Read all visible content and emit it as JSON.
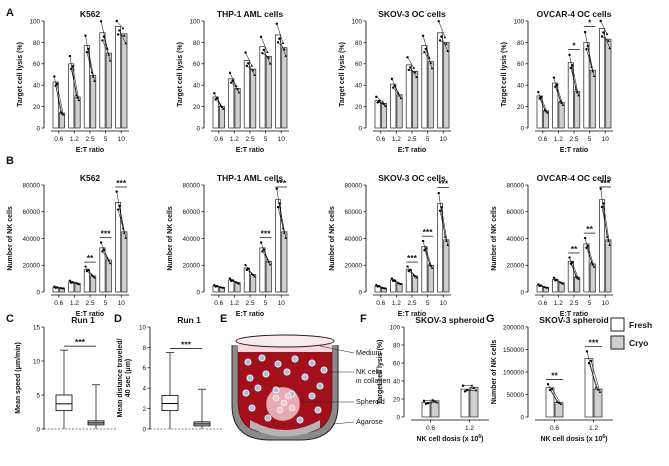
{
  "figure": {
    "panel_letters": [
      "A",
      "B",
      "C",
      "D",
      "E",
      "F",
      "G"
    ],
    "legend": {
      "fresh_label": "Fresh",
      "cryo_label": "Cryo",
      "fresh_color": "#ffffff",
      "cryo_color": "#cfcfcf"
    }
  },
  "chart_data": [
    {
      "id": "A1",
      "type": "bar",
      "title": "K562",
      "xlabel": "E:T ratio",
      "ylabel": "Target cell lysis (%)",
      "categories": [
        "0.6",
        "1.2",
        "2.5",
        "5",
        "10"
      ],
      "ylim": [
        0,
        100
      ],
      "yticks": [
        0,
        20,
        40,
        60,
        80,
        100
      ],
      "series": [
        {
          "name": "Fresh",
          "values": [
            43,
            60,
            77,
            89,
            95
          ]
        },
        {
          "name": "Cryo",
          "values": [
            14,
            29,
            49,
            70,
            88
          ]
        }
      ],
      "annotations": []
    },
    {
      "id": "A2",
      "type": "bar",
      "title": "THP-1  AML cells",
      "xlabel": "E:T ratio",
      "ylabel": "Target cell lysis (%)",
      "categories": [
        "0.6",
        "1.2",
        "2.5",
        "5",
        "10"
      ],
      "ylim": [
        0,
        100
      ],
      "yticks": [
        0,
        20,
        40,
        60,
        80,
        100
      ],
      "series": [
        {
          "name": "Fresh",
          "values": [
            29,
            46,
            63,
            76,
            87
          ]
        },
        {
          "name": "Cryo",
          "values": [
            20,
            37,
            55,
            67,
            75
          ]
        }
      ],
      "annotations": []
    },
    {
      "id": "A3",
      "type": "bar",
      "title": "SKOV-3 OC cells",
      "xlabel": "E:T ratio",
      "ylabel": "Target cell lysis (%)",
      "categories": [
        "0.6",
        "1.2",
        "2.5",
        "5",
        "10"
      ],
      "ylim": [
        0,
        100
      ],
      "yticks": [
        0,
        20,
        40,
        60,
        80,
        100
      ],
      "series": [
        {
          "name": "Fresh",
          "values": [
            26,
            41,
            59,
            77,
            89
          ]
        },
        {
          "name": "Cryo",
          "values": [
            23,
            31,
            53,
            62,
            80
          ]
        }
      ],
      "annotations": []
    },
    {
      "id": "A4",
      "type": "bar",
      "title": "OVCAR-4 OC cells",
      "xlabel": "E:T ratio",
      "ylabel": "Target cell lysis (%)",
      "categories": [
        "0.6",
        "1.2",
        "2.5",
        "5",
        "10"
      ],
      "ylim": [
        0,
        100
      ],
      "yticks": [
        0,
        20,
        40,
        60,
        80,
        100
      ],
      "series": [
        {
          "name": "Fresh",
          "values": [
            30,
            42,
            61,
            80,
            93
          ]
        },
        {
          "name": "Cryo",
          "values": [
            16,
            24,
            34,
            54,
            83
          ]
        }
      ],
      "annotations": [
        {
          "category": "2.5",
          "label": "*"
        },
        {
          "category": "5",
          "label": "*"
        }
      ]
    },
    {
      "id": "B1",
      "type": "bar",
      "title": "K562",
      "xlabel": "E:T ratio",
      "ylabel": "Number of NK cells",
      "categories": [
        "0.6",
        "1.2",
        "2.5",
        "5",
        "10"
      ],
      "ylim": [
        0,
        80000
      ],
      "yticks": [
        0,
        20000,
        40000,
        60000,
        80000
      ],
      "series": [
        {
          "name": "Fresh",
          "values": [
            3500,
            7500,
            17000,
            33000,
            67000
          ]
        },
        {
          "name": "Cryo",
          "values": [
            3000,
            6500,
            12000,
            24000,
            45000
          ]
        }
      ],
      "annotations": [
        {
          "category": "2.5",
          "label": "**"
        },
        {
          "category": "5",
          "label": "***"
        },
        {
          "category": "10",
          "label": "***"
        }
      ]
    },
    {
      "id": "B2",
      "type": "bar",
      "title": "THP-1  AML cells",
      "xlabel": "E:T ratio",
      "ylabel": "Number of NK cells",
      "categories": [
        "0.6",
        "1.2",
        "2.5",
        "5",
        "10"
      ],
      "ylim": [
        0,
        80000
      ],
      "yticks": [
        0,
        20000,
        40000,
        60000,
        80000
      ],
      "series": [
        {
          "name": "Fresh",
          "values": [
            4500,
            9000,
            18000,
            33000,
            69000
          ]
        },
        {
          "name": "Cryo",
          "values": [
            3500,
            7000,
            13000,
            23000,
            45000
          ]
        }
      ],
      "annotations": [
        {
          "category": "5",
          "label": "***"
        },
        {
          "category": "10",
          "label": "***"
        }
      ]
    },
    {
      "id": "B3",
      "type": "bar",
      "title": "SKOV-3 OC cells",
      "xlabel": "E:T ratio",
      "ylabel": "Number of NK cells",
      "categories": [
        "0.6",
        "1.2",
        "2.5",
        "5",
        "10"
      ],
      "ylim": [
        0,
        80000
      ],
      "yticks": [
        0,
        20000,
        40000,
        60000,
        80000
      ],
      "series": [
        {
          "name": "Fresh",
          "values": [
            4500,
            9000,
            17000,
            34000,
            66000
          ]
        },
        {
          "name": "Cryo",
          "values": [
            3000,
            6500,
            12000,
            20000,
            39000
          ]
        }
      ],
      "annotations": [
        {
          "category": "2.5",
          "label": "***"
        },
        {
          "category": "5",
          "label": "***"
        },
        {
          "category": "10",
          "label": "***"
        }
      ]
    },
    {
      "id": "B4",
      "type": "bar",
      "title": "OVCAR-4 OC cells",
      "xlabel": "E:T ratio",
      "ylabel": "Number of NK cells",
      "categories": [
        "0.6",
        "1.2",
        "2.5",
        "5",
        "10"
      ],
      "ylim": [
        0,
        80000
      ],
      "yticks": [
        0,
        20000,
        40000,
        60000,
        80000
      ],
      "series": [
        {
          "name": "Fresh",
          "values": [
            5000,
            9500,
            23000,
            36000,
            69000
          ]
        },
        {
          "name": "Cryo",
          "values": [
            3500,
            7000,
            11000,
            21000,
            39000
          ]
        }
      ],
      "annotations": [
        {
          "category": "2.5",
          "label": "**"
        },
        {
          "category": "5",
          "label": "**"
        },
        {
          "category": "10",
          "label": "***"
        }
      ]
    },
    {
      "id": "C",
      "type": "box",
      "title": "Run 1",
      "ylabel": "Mean speed  (μm/min)",
      "ylim": [
        0,
        15
      ],
      "yticks": [
        0,
        5,
        10,
        15
      ],
      "boxes": [
        {
          "name": "Fresh",
          "min": 0,
          "q1": 2.7,
          "median": 3.7,
          "q3": 5.0,
          "max": 11.6
        },
        {
          "name": "Cryo",
          "min": 0,
          "q1": 0.6,
          "median": 0.9,
          "q3": 1.2,
          "max": 6.5
        }
      ],
      "significance": "***"
    },
    {
      "id": "D",
      "type": "box",
      "title": "Run 1",
      "ylabel": "Mean distance traveled/\n40 sec (μm)",
      "ylim": [
        0,
        10
      ],
      "yticks": [
        0,
        2,
        4,
        6,
        8,
        10
      ],
      "boxes": [
        {
          "name": "Fresh",
          "min": 0,
          "q1": 1.8,
          "median": 2.5,
          "q3": 3.3,
          "max": 7.5
        },
        {
          "name": "Cryo",
          "min": 0,
          "q1": 0.3,
          "median": 0.5,
          "q3": 0.7,
          "max": 3.9
        }
      ],
      "significance": "***"
    },
    {
      "id": "F",
      "type": "bar",
      "title": "SKOV-3 spheroid",
      "xlabel": "NK cell dosis (x 10",
      "xlabel_sup": "6",
      "xlabel_end": ")",
      "ylabel": "Target cell lysis (%)",
      "categories": [
        "0.6",
        "1.2"
      ],
      "ylim": [
        0,
        100
      ],
      "yticks": [
        0,
        20,
        40,
        60,
        80,
        100
      ],
      "series": [
        {
          "name": "Fresh",
          "values": [
            16,
            31
          ]
        },
        {
          "name": "Cryo",
          "values": [
            18,
            33
          ]
        }
      ],
      "annotations": []
    },
    {
      "id": "G",
      "type": "bar",
      "title": "SKOV-3 spheroid",
      "xlabel": "NK cell dosis (x 10",
      "xlabel_sup": "6",
      "xlabel_end": ")",
      "ylabel": "Number of NK cells",
      "categories": [
        "0.6",
        "1.2"
      ],
      "ylim": [
        0,
        200000
      ],
      "yticks": [
        0,
        50000,
        100000,
        150000,
        200000
      ],
      "series": [
        {
          "name": "Fresh",
          "values": [
            65000,
            130000
          ]
        },
        {
          "name": "Cryo",
          "values": [
            32000,
            62000
          ]
        }
      ],
      "annotations": [
        {
          "category": "0.6",
          "label": "**"
        },
        {
          "category": "1.2",
          "label": "***"
        }
      ]
    }
  ],
  "schematic": {
    "labels": [
      "Medium",
      "NK cells\nin collagen",
      "Spheroid",
      "Agarose"
    ]
  }
}
